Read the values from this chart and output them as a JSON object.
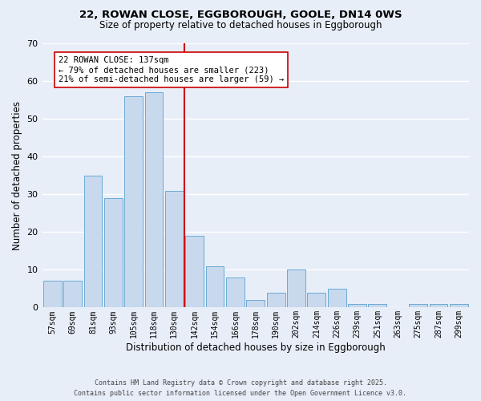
{
  "title_line1": "22, ROWAN CLOSE, EGGBOROUGH, GOOLE, DN14 0WS",
  "title_line2": "Size of property relative to detached houses in Eggborough",
  "xlabel": "Distribution of detached houses by size in Eggborough",
  "ylabel": "Number of detached properties",
  "bins": [
    "57sqm",
    "69sqm",
    "81sqm",
    "93sqm",
    "105sqm",
    "118sqm",
    "130sqm",
    "142sqm",
    "154sqm",
    "166sqm",
    "178sqm",
    "190sqm",
    "202sqm",
    "214sqm",
    "226sqm",
    "239sqm",
    "251sqm",
    "263sqm",
    "275sqm",
    "287sqm",
    "299sqm"
  ],
  "values": [
    7,
    7,
    35,
    29,
    56,
    57,
    31,
    19,
    11,
    8,
    2,
    4,
    10,
    4,
    5,
    1,
    1,
    0,
    1,
    1,
    1
  ],
  "bar_color": "#c8d9ee",
  "bar_edge_color": "#6aaad4",
  "red_line_index": 7,
  "red_line_color": "#cc0000",
  "annotation_text": "22 ROWAN CLOSE: 137sqm\n← 79% of detached houses are smaller (223)\n21% of semi-detached houses are larger (59) →",
  "annotation_box_color": "#ffffff",
  "annotation_box_edge": "#cc0000",
  "bg_color": "#e8eef8",
  "grid_color": "#ffffff",
  "footer_line1": "Contains HM Land Registry data © Crown copyright and database right 2025.",
  "footer_line2": "Contains public sector information licensed under the Open Government Licence v3.0.",
  "ylim": [
    0,
    70
  ],
  "yticks": [
    0,
    10,
    20,
    30,
    40,
    50,
    60,
    70
  ]
}
